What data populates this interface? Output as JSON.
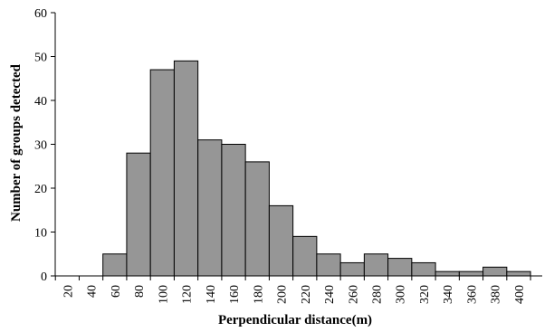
{
  "chart_data": {
    "type": "bar",
    "title": "",
    "xlabel": "Perpendicular distance(m)",
    "ylabel": "Number of groups detected",
    "categories": [
      "20",
      "40",
      "60",
      "80",
      "100",
      "120",
      "140",
      "160",
      "180",
      "200",
      "220",
      "240",
      "260",
      "280",
      "300",
      "320",
      "340",
      "360",
      "380",
      "400"
    ],
    "values": [
      0,
      0,
      5,
      28,
      47,
      49,
      31,
      30,
      26,
      16,
      9,
      5,
      3,
      5,
      4,
      3,
      1,
      1,
      2,
      1
    ],
    "ylim": [
      0,
      60
    ],
    "yticks": [
      0,
      10,
      20,
      30,
      40,
      50,
      60
    ],
    "grid": false,
    "legend": "none",
    "colors": {
      "bar_fill": "#969696",
      "bar_stroke": "#000000",
      "axis": "#000000"
    }
  }
}
